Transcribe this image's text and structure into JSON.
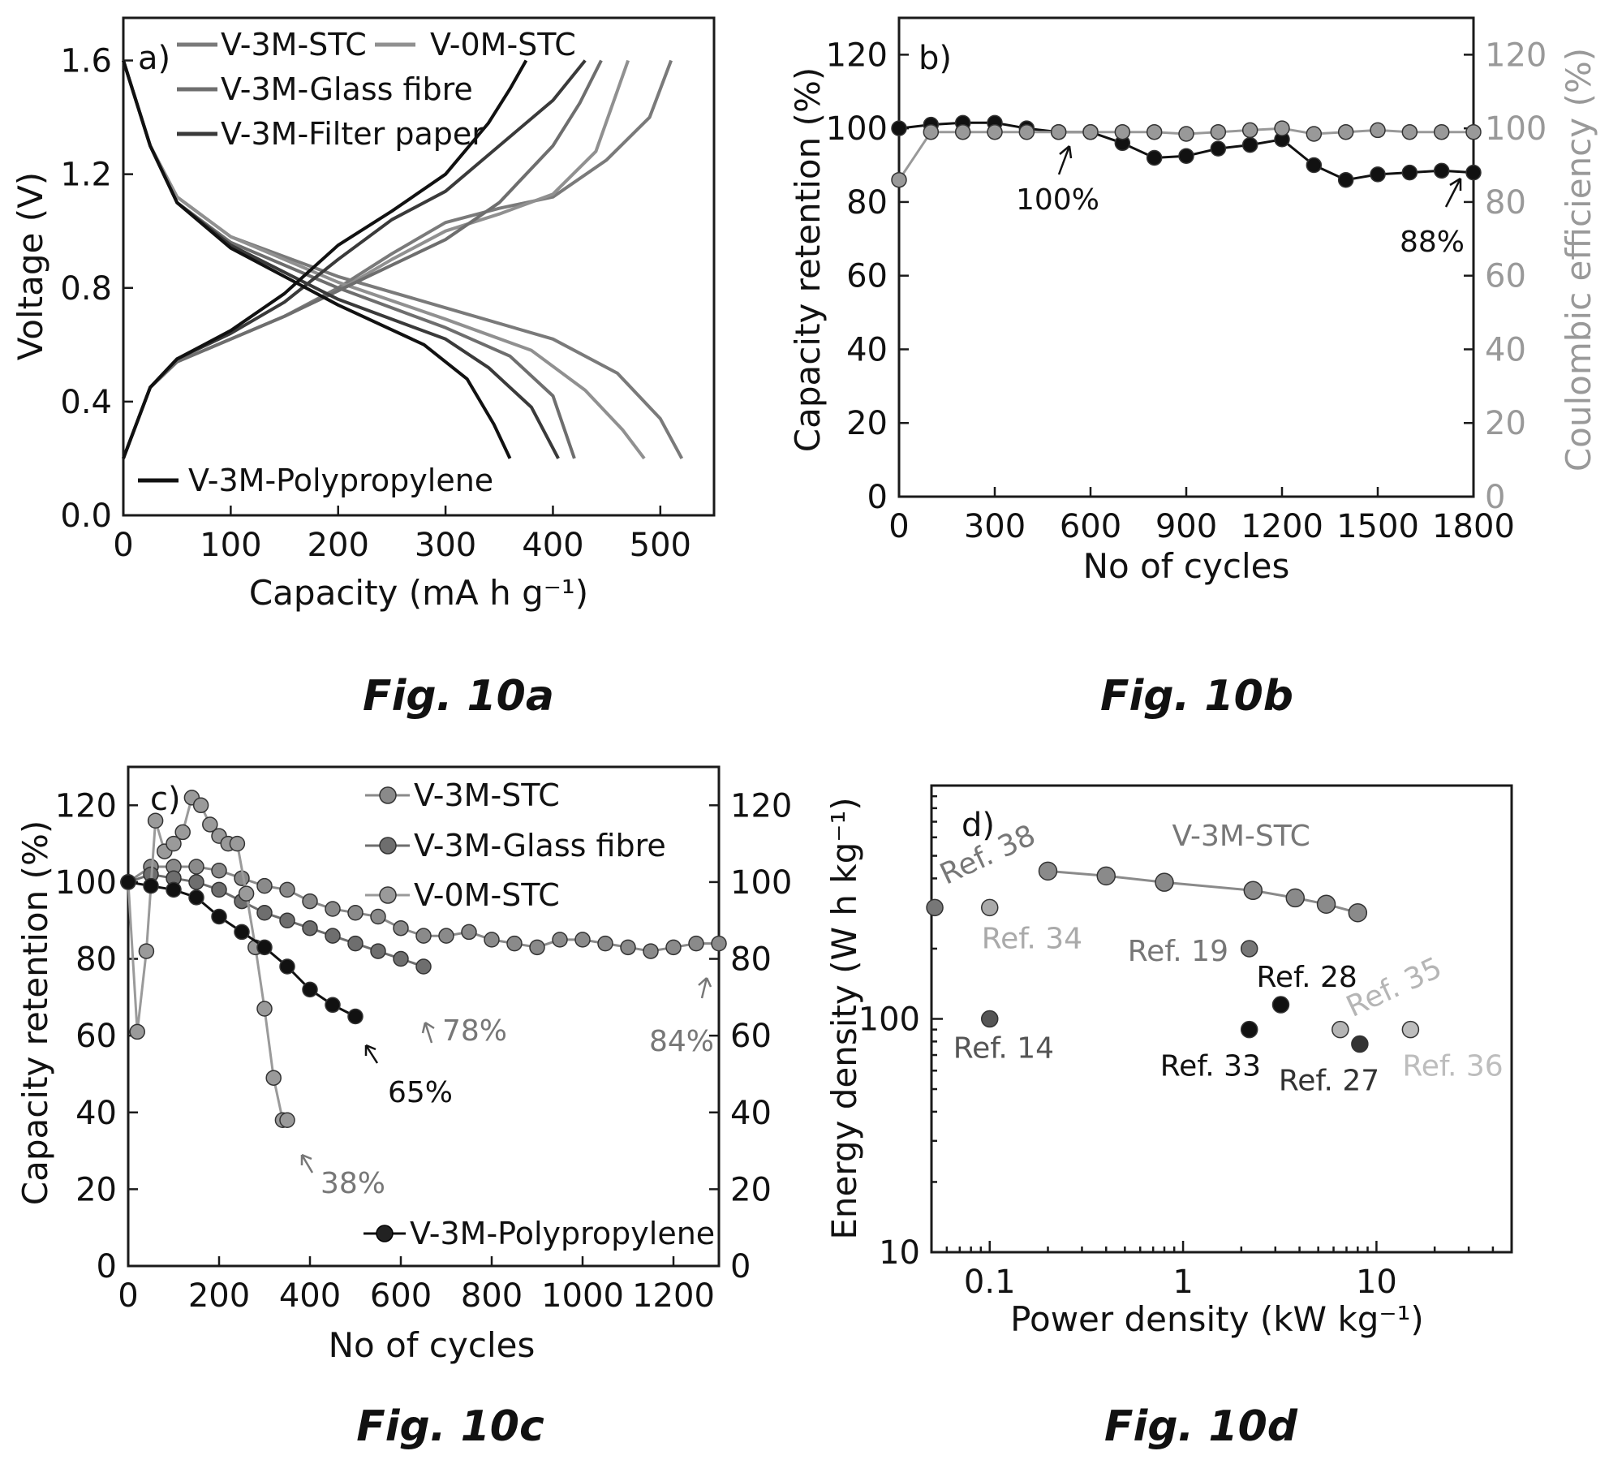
{
  "figure_captions": [
    "Fig. 10a",
    "Fig. 10b",
    "Fig. 10c",
    "Fig. 10d"
  ],
  "chart_data": [
    {
      "panel": "a)",
      "type": "line",
      "xlabel": "Capacity (mA h g⁻¹)",
      "ylabel": "Voltage (V)",
      "xlim": [
        0,
        550
      ],
      "ylim": [
        0,
        1.75
      ],
      "x_ticks": [
        "0",
        "100",
        "200",
        "300",
        "400",
        "500"
      ],
      "y_ticks": [
        "0.0",
        "0.4",
        "0.8",
        "1.2",
        "1.6"
      ],
      "legend": [
        "V-3M-STC",
        "V-0M-STC",
        "V-3M-Glass fibre",
        "V-3M-Filter paper",
        "V-3M-Polypropylene"
      ],
      "series": [
        {
          "name": "V-3M-STC",
          "color": "#7a7a7a",
          "discharge": [
            [
              0,
              1.6
            ],
            [
              25,
              1.3
            ],
            [
              50,
              1.12
            ],
            [
              100,
              0.98
            ],
            [
              200,
              0.84
            ],
            [
              300,
              0.73
            ],
            [
              400,
              0.62
            ],
            [
              460,
              0.5
            ],
            [
              500,
              0.34
            ],
            [
              520,
              0.2
            ]
          ],
          "charge": [
            [
              0,
              0.2
            ],
            [
              25,
              0.45
            ],
            [
              50,
              0.54
            ],
            [
              100,
              0.62
            ],
            [
              150,
              0.7
            ],
            [
              200,
              0.8
            ],
            [
              250,
              0.92
            ],
            [
              300,
              1.03
            ],
            [
              350,
              1.08
            ],
            [
              400,
              1.12
            ],
            [
              450,
              1.25
            ],
            [
              490,
              1.4
            ],
            [
              510,
              1.6
            ]
          ]
        },
        {
          "name": "V-0M-STC",
          "color": "#909090",
          "discharge": [
            [
              0,
              1.6
            ],
            [
              25,
              1.3
            ],
            [
              50,
              1.12
            ],
            [
              100,
              0.98
            ],
            [
              200,
              0.82
            ],
            [
              300,
              0.69
            ],
            [
              380,
              0.58
            ],
            [
              430,
              0.44
            ],
            [
              465,
              0.3
            ],
            [
              485,
              0.2
            ]
          ],
          "charge": [
            [
              0,
              0.2
            ],
            [
              25,
              0.45
            ],
            [
              50,
              0.54
            ],
            [
              100,
              0.62
            ],
            [
              150,
              0.7
            ],
            [
              200,
              0.79
            ],
            [
              250,
              0.9
            ],
            [
              300,
              1.0
            ],
            [
              350,
              1.06
            ],
            [
              400,
              1.13
            ],
            [
              440,
              1.28
            ],
            [
              470,
              1.6
            ]
          ]
        },
        {
          "name": "V-3M-Glass fibre",
          "color": "#6e6e6e",
          "discharge": [
            [
              0,
              1.6
            ],
            [
              25,
              1.3
            ],
            [
              50,
              1.1
            ],
            [
              100,
              0.96
            ],
            [
              200,
              0.8
            ],
            [
              300,
              0.66
            ],
            [
              360,
              0.56
            ],
            [
              400,
              0.42
            ],
            [
              420,
              0.2
            ]
          ],
          "charge": [
            [
              0,
              0.2
            ],
            [
              25,
              0.45
            ],
            [
              50,
              0.54
            ],
            [
              100,
              0.62
            ],
            [
              150,
              0.7
            ],
            [
              200,
              0.79
            ],
            [
              250,
              0.88
            ],
            [
              300,
              0.97
            ],
            [
              350,
              1.1
            ],
            [
              400,
              1.3
            ],
            [
              425,
              1.45
            ],
            [
              445,
              1.6
            ]
          ]
        },
        {
          "name": "V-3M-Filter paper",
          "color": "#3a3a3a",
          "discharge": [
            [
              0,
              1.6
            ],
            [
              25,
              1.3
            ],
            [
              50,
              1.1
            ],
            [
              100,
              0.95
            ],
            [
              200,
              0.76
            ],
            [
              300,
              0.62
            ],
            [
              340,
              0.52
            ],
            [
              380,
              0.38
            ],
            [
              405,
              0.2
            ]
          ],
          "charge": [
            [
              0,
              0.2
            ],
            [
              25,
              0.45
            ],
            [
              50,
              0.55
            ],
            [
              100,
              0.64
            ],
            [
              150,
              0.75
            ],
            [
              200,
              0.9
            ],
            [
              250,
              1.04
            ],
            [
              300,
              1.14
            ],
            [
              350,
              1.3
            ],
            [
              400,
              1.46
            ],
            [
              430,
              1.6
            ]
          ]
        },
        {
          "name": "V-3M-Polypropylene",
          "color": "#111111",
          "discharge": [
            [
              0,
              1.6
            ],
            [
              25,
              1.3
            ],
            [
              50,
              1.1
            ],
            [
              100,
              0.94
            ],
            [
              200,
              0.74
            ],
            [
              280,
              0.6
            ],
            [
              320,
              0.48
            ],
            [
              345,
              0.32
            ],
            [
              360,
              0.2
            ]
          ],
          "charge": [
            [
              0,
              0.2
            ],
            [
              25,
              0.45
            ],
            [
              50,
              0.55
            ],
            [
              100,
              0.65
            ],
            [
              150,
              0.78
            ],
            [
              200,
              0.95
            ],
            [
              250,
              1.07
            ],
            [
              300,
              1.2
            ],
            [
              340,
              1.38
            ],
            [
              360,
              1.5
            ],
            [
              375,
              1.6
            ]
          ]
        }
      ]
    },
    {
      "panel": "b)",
      "type": "line",
      "xlabel": "No of cycles",
      "ylabel": "Capacity retention (%)",
      "y2label": "Coulombic efficiency (%)",
      "xlim": [
        0,
        1800
      ],
      "ylim": [
        0,
        130
      ],
      "y2lim": [
        0,
        130
      ],
      "x_ticks": [
        "0",
        "300",
        "600",
        "900",
        "1200",
        "1500",
        "1800"
      ],
      "y_ticks": [
        "0",
        "20",
        "40",
        "60",
        "80",
        "100",
        "120"
      ],
      "y2_ticks": [
        "0",
        "20",
        "40",
        "60",
        "80",
        "100",
        "120"
      ],
      "annotations": [
        {
          "text": "100%",
          "x": 500,
          "y": 99
        },
        {
          "text": "88%",
          "x": 1790,
          "y": 88
        }
      ],
      "series": [
        {
          "name": "Capacity retention",
          "color": "#111111",
          "x": [
            0,
            100,
            200,
            300,
            400,
            500,
            600,
            700,
            800,
            900,
            1000,
            1100,
            1200,
            1300,
            1400,
            1500,
            1600,
            1700,
            1800
          ],
          "y": [
            100,
            101,
            101.5,
            101.5,
            100,
            99,
            99,
            96,
            92,
            92.5,
            94.5,
            95.5,
            97,
            90,
            86,
            87.5,
            88,
            88.5,
            88
          ]
        },
        {
          "name": "Coulombic efficiency",
          "color": "#999999",
          "x": [
            0,
            100,
            200,
            300,
            400,
            500,
            600,
            700,
            800,
            900,
            1000,
            1100,
            1200,
            1300,
            1400,
            1500,
            1600,
            1700,
            1800
          ],
          "y": [
            86,
            99,
            99,
            99,
            99,
            99,
            99,
            99,
            99,
            98.5,
            99,
            99.5,
            100,
            98.5,
            99,
            99.5,
            99,
            99,
            99
          ]
        }
      ]
    },
    {
      "panel": "c)",
      "type": "line",
      "xlabel": "No of cycles",
      "ylabel": "Capacity retention (%)",
      "xlim": [
        0,
        1300
      ],
      "ylim": [
        0,
        130
      ],
      "y2lim": [
        0,
        130
      ],
      "x_ticks": [
        "0",
        "200",
        "400",
        "600",
        "800",
        "1000",
        "1200"
      ],
      "y_ticks": [
        "0",
        "20",
        "40",
        "60",
        "80",
        "100",
        "120"
      ],
      "y2_ticks": [
        "0",
        "20",
        "40",
        "60",
        "80",
        "100",
        "120"
      ],
      "legend": [
        "V-3M-STC",
        "V-3M-Glass fibre",
        "V-0M-STC",
        "V-3M-Polypropylene"
      ],
      "annotations": [
        {
          "text": "84%",
          "x": 1280,
          "y": 84,
          "color": "#777777"
        },
        {
          "text": "78%",
          "x": 650,
          "y": 78,
          "color": "#777777"
        },
        {
          "text": "65%",
          "x": 500,
          "y": 65,
          "color": "#111111"
        },
        {
          "text": "38%",
          "x": 350,
          "y": 38,
          "color": "#777777"
        }
      ],
      "series": [
        {
          "name": "V-3M-STC",
          "color": "#8a8a8a",
          "x": [
            0,
            50,
            100,
            150,
            200,
            250,
            300,
            350,
            400,
            450,
            500,
            550,
            600,
            650,
            700,
            750,
            800,
            850,
            900,
            950,
            1000,
            1050,
            1100,
            1150,
            1200,
            1250,
            1300
          ],
          "y": [
            100,
            104,
            104,
            104,
            103,
            101,
            99,
            98,
            95,
            93,
            92,
            91,
            88,
            86,
            86,
            87,
            85,
            84,
            83,
            85,
            85,
            84,
            83,
            82,
            83,
            84,
            84
          ]
        },
        {
          "name": "V-3M-Glass fibre",
          "color": "#6e6e6e",
          "x": [
            0,
            50,
            100,
            150,
            200,
            250,
            300,
            350,
            400,
            450,
            500,
            550,
            600,
            650
          ],
          "y": [
            100,
            102,
            101,
            100,
            98,
            95,
            92,
            90,
            88,
            86,
            84,
            82,
            80,
            78
          ]
        },
        {
          "name": "V-0M-STC",
          "color": "#9a9a9a",
          "x": [
            0,
            20,
            40,
            60,
            80,
            100,
            120,
            140,
            160,
            180,
            200,
            220,
            240,
            260,
            280,
            300,
            320,
            340,
            350
          ],
          "y": [
            100,
            61,
            82,
            116,
            108,
            110,
            113,
            122,
            120,
            115,
            112,
            110,
            110,
            97,
            83,
            67,
            49,
            38,
            38
          ]
        },
        {
          "name": "V-3M-Polypropylene",
          "color": "#111111",
          "x": [
            0,
            50,
            100,
            150,
            200,
            250,
            300,
            350,
            400,
            450,
            500
          ],
          "y": [
            100,
            99,
            98,
            96,
            91,
            87,
            83,
            78,
            72,
            68,
            65
          ]
        }
      ]
    },
    {
      "panel": "d)",
      "type": "scatter",
      "xlabel": "Power density (kW kg⁻¹)",
      "ylabel": "Energy density (W h kg⁻¹)",
      "x_scale": "log",
      "y_scale": "log",
      "xlim": [
        0.05,
        50
      ],
      "ylim": [
        10,
        1000
      ],
      "x_ticks": [
        "0.1",
        "1",
        "10"
      ],
      "y_ticks": [
        "10",
        "100"
      ],
      "series": [
        {
          "name": "V-3M-STC",
          "color": "#8a8a8a",
          "label": "V-3M-STC",
          "x": [
            0.2,
            0.4,
            0.8,
            2.3,
            3.8,
            5.5,
            8
          ],
          "y": [
            430,
            410,
            385,
            355,
            330,
            310,
            285
          ]
        }
      ],
      "references": [
        {
          "label": "Ref. 38",
          "x": 0.052,
          "y": 300,
          "color": "#777777"
        },
        {
          "label": "Ref. 34",
          "x": 0.1,
          "y": 300,
          "color": "#aaaaaa"
        },
        {
          "label": "Ref. 14",
          "x": 0.1,
          "y": 100,
          "color": "#555555"
        },
        {
          "label": "Ref. 19",
          "x": 2.2,
          "y": 200,
          "color": "#777777"
        },
        {
          "label": "Ref. 28",
          "x": 3.2,
          "y": 115,
          "color": "#111111"
        },
        {
          "label": "Ref. 33",
          "x": 2.2,
          "y": 90,
          "color": "#111111"
        },
        {
          "label": "Ref. 35",
          "x": 6.5,
          "y": 90,
          "color": "#b5b5b5"
        },
        {
          "label": "Ref. 27",
          "x": 8.2,
          "y": 78,
          "color": "#333333"
        },
        {
          "label": "Ref. 36",
          "x": 15,
          "y": 90,
          "color": "#bdbdbd"
        }
      ]
    }
  ]
}
